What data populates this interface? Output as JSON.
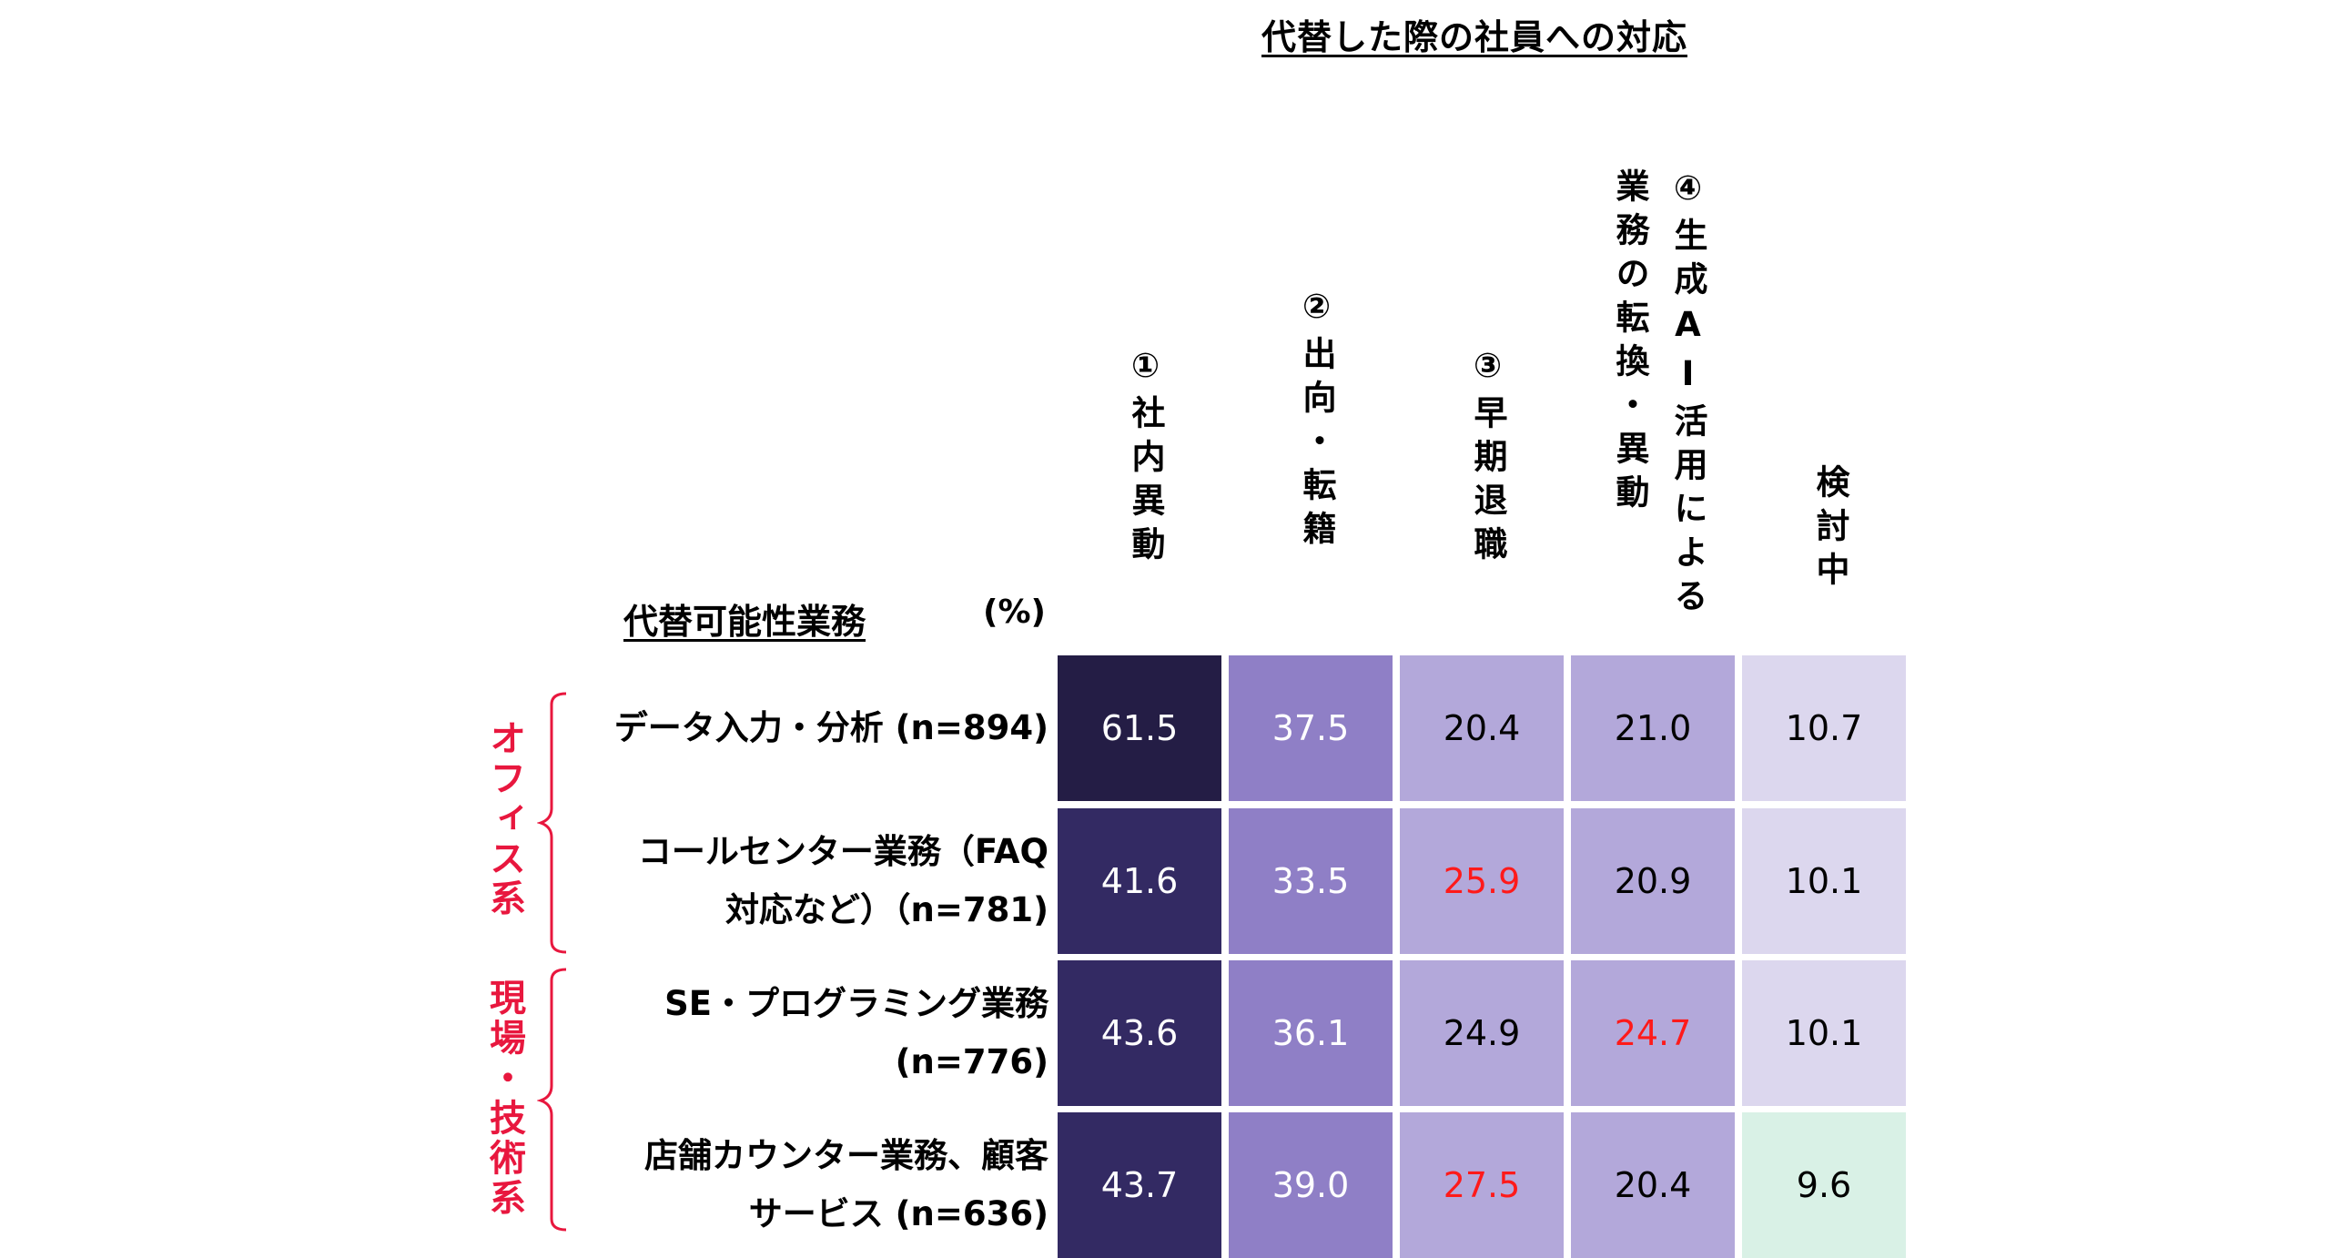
{
  "chart_data": {
    "type": "table",
    "title": "代替した際の社員への対応",
    "row_header": "代替可能性業務",
    "unit": "(%)",
    "columns": [
      "①社内異動",
      "②出向・転籍",
      "③早期退職",
      "④生成AI活用による業務の転換・異動",
      "検討中"
    ],
    "col_headers": {
      "c1": "①社内異動",
      "c2": "②出向・転籍",
      "c3": "③早期退職",
      "c4": "④生成AI活用による業務の転換・異動",
      "c5": "検討中"
    },
    "groups": [
      {
        "label": "オフィス系",
        "rows": [
          0,
          1
        ]
      },
      {
        "label": "現場・技術系",
        "rows": [
          2,
          3
        ]
      }
    ],
    "group_labels": {
      "office": "オフィス系",
      "field": "現場・技術系"
    },
    "rows": [
      {
        "label": [
          "データ入力・分析 (n=894)"
        ],
        "values": [
          61.5,
          37.5,
          20.4,
          21.0,
          10.7
        ],
        "highlight": [
          false,
          false,
          false,
          false,
          false
        ]
      },
      {
        "label": [
          "コールセンター業務（FAQ",
          "対応など）（n=781)"
        ],
        "values": [
          41.6,
          33.5,
          25.9,
          20.9,
          10.1
        ],
        "highlight": [
          false,
          false,
          true,
          false,
          false
        ]
      },
      {
        "label": [
          "SE・プログラミング業務",
          "(n=776)"
        ],
        "values": [
          43.6,
          36.1,
          24.9,
          24.7,
          10.1
        ],
        "highlight": [
          false,
          false,
          false,
          true,
          false
        ]
      },
      {
        "label": [
          "店舗カウンター業務、顧客",
          "サービス (n=636)"
        ],
        "values": [
          43.7,
          39.0,
          27.5,
          20.4,
          9.6
        ],
        "highlight": [
          false,
          false,
          true,
          false,
          false
        ]
      }
    ],
    "colors": {
      "highlight_text": "#ff1a1a",
      "group_label": "#e8173e",
      "scale": [
        {
          "min": 60,
          "bg": "#241d45",
          "fg": "#ffffff"
        },
        {
          "min": 40,
          "bg": "#332a63",
          "fg": "#ffffff"
        },
        {
          "min": 30,
          "bg": "#8f7fc6",
          "fg": "#ffffff"
        },
        {
          "min": 20,
          "bg": "#b3a8da",
          "fg": "#000000"
        },
        {
          "min": 10,
          "bg": "#dcd7ee",
          "fg": "#000000"
        },
        {
          "min": 0,
          "bg": "#d9f1e6",
          "fg": "#000000"
        }
      ]
    }
  }
}
